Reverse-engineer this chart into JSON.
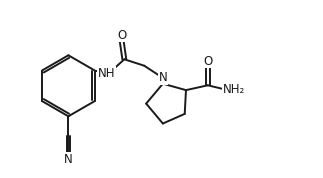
{
  "bg_color": "#ffffff",
  "line_color": "#1a1a1a",
  "line_width": 1.4,
  "font_size_atoms": 8.5,
  "figsize": [
    3.23,
    1.78
  ],
  "dpi": 100,
  "xlim": [
    0,
    10
  ],
  "ylim": [
    0,
    5.5
  ]
}
